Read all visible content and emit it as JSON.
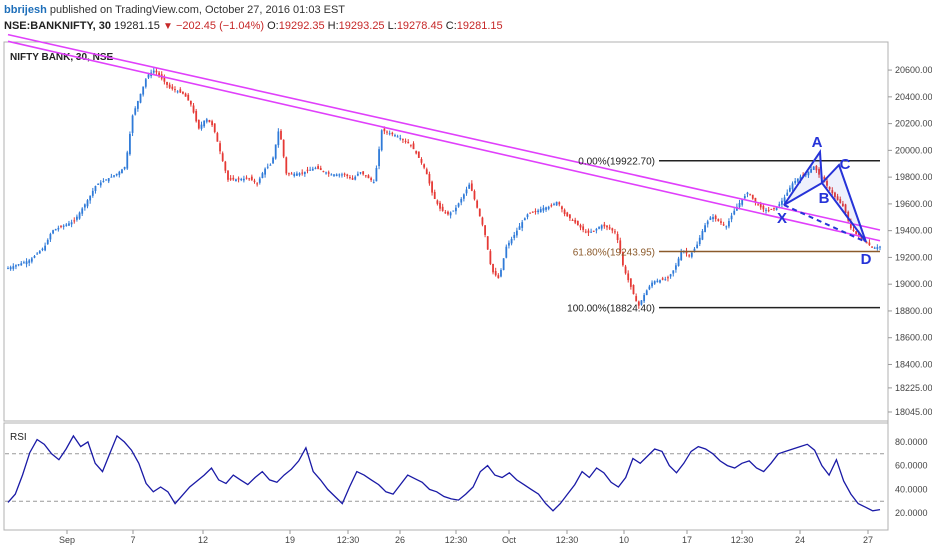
{
  "header": {
    "user": "bbrijesh",
    "published": "published on TradingView.com, October 27, 2016 01:03 EST",
    "symbol": "NSE:BANKNIFTY, 30",
    "last": "19281.15",
    "change": "−202.45 (−1.04%)",
    "o_label": "O:",
    "o": "19292.35",
    "h_label": "H:",
    "h": "19293.25",
    "l_label": "L:",
    "l": "19278.45",
    "c_label": "C:",
    "c": "19281.15"
  },
  "chart_data": {
    "type": "candlestick",
    "title": "NIFTY BANK, 30, NSE",
    "x_ticks": [
      "Sep",
      "7",
      "12",
      "19",
      "12:30",
      "26",
      "12:30",
      "Oct",
      "12:30",
      "10",
      "17",
      "12:30",
      "24",
      "27"
    ],
    "y_ticks": [
      "20600.00",
      "20400.00",
      "20200.00",
      "20000.00",
      "19800.00",
      "19600.00",
      "19400.00",
      "19200.00",
      "19000.00",
      "18800.00",
      "18600.00",
      "18400.00",
      "18225.00",
      "18045.00"
    ],
    "price_path": [
      [
        0,
        19120
      ],
      [
        3,
        19180
      ],
      [
        5,
        19280
      ],
      [
        6,
        19400
      ],
      [
        9,
        19470
      ],
      [
        11,
        19640
      ],
      [
        12,
        19740
      ],
      [
        14,
        19800
      ],
      [
        15,
        19830
      ],
      [
        16,
        19880
      ],
      [
        17,
        20260
      ],
      [
        19,
        20560
      ],
      [
        20,
        20600
      ],
      [
        22,
        20470
      ],
      [
        24,
        20420
      ],
      [
        25,
        20340
      ],
      [
        26,
        20160
      ],
      [
        27,
        20240
      ],
      [
        28,
        20180
      ],
      [
        30,
        19780
      ],
      [
        33,
        19790
      ],
      [
        34,
        19750
      ],
      [
        35,
        19860
      ],
      [
        36,
        19900
      ],
      [
        37,
        20170
      ],
      [
        38,
        19820
      ],
      [
        40,
        19830
      ],
      [
        42,
        19870
      ],
      [
        44,
        19820
      ],
      [
        46,
        19820
      ],
      [
        47,
        19780
      ],
      [
        48,
        19840
      ],
      [
        50,
        19760
      ],
      [
        51,
        20150
      ],
      [
        53,
        20110
      ],
      [
        55,
        20040
      ],
      [
        56,
        19950
      ],
      [
        57,
        19850
      ],
      [
        58,
        19660
      ],
      [
        59,
        19560
      ],
      [
        60,
        19520
      ],
      [
        61,
        19560
      ],
      [
        62,
        19650
      ],
      [
        63,
        19750
      ],
      [
        65,
        19400
      ],
      [
        66,
        19100
      ],
      [
        67,
        19040
      ],
      [
        68,
        19280
      ],
      [
        69,
        19360
      ],
      [
        70,
        19450
      ],
      [
        71,
        19530
      ],
      [
        72,
        19540
      ],
      [
        73,
        19570
      ],
      [
        74,
        19580
      ],
      [
        75,
        19620
      ],
      [
        76,
        19520
      ],
      [
        77,
        19480
      ],
      [
        78,
        19430
      ],
      [
        79,
        19380
      ],
      [
        80,
        19400
      ],
      [
        81,
        19440
      ],
      [
        82,
        19420
      ],
      [
        83,
        19380
      ],
      [
        84,
        19120
      ],
      [
        85,
        18980
      ],
      [
        86,
        18830
      ],
      [
        87,
        18940
      ],
      [
        88,
        19020
      ],
      [
        90,
        19040
      ],
      [
        91,
        19120
      ],
      [
        92,
        19260
      ],
      [
        93,
        19210
      ],
      [
        94,
        19290
      ],
      [
        95,
        19430
      ],
      [
        96,
        19510
      ],
      [
        97,
        19470
      ],
      [
        98,
        19430
      ],
      [
        99,
        19540
      ],
      [
        100,
        19620
      ],
      [
        101,
        19690
      ],
      [
        102,
        19610
      ],
      [
        103,
        19560
      ],
      [
        104,
        19550
      ],
      [
        105,
        19580
      ],
      [
        106,
        19650
      ],
      [
        107,
        19750
      ],
      [
        108,
        19800
      ],
      [
        109,
        19830
      ],
      [
        110,
        19880
      ],
      [
        111,
        19790
      ],
      [
        112,
        19720
      ],
      [
        113,
        19640
      ],
      [
        114,
        19580
      ],
      [
        115,
        19420
      ],
      [
        116,
        19360
      ],
      [
        117,
        19320
      ],
      [
        118,
        19270
      ],
      [
        119,
        19281
      ]
    ],
    "trendline_upper": [
      [
        0,
        20790
      ],
      [
        119,
        19330
      ]
    ],
    "trendline_lower": [
      [
        0,
        20740
      ],
      [
        119,
        19250
      ]
    ],
    "fibonacci": [
      {
        "label": "0.00%(19922.70)",
        "value": 19922.7
      },
      {
        "label": "61.80%(19243.95)",
        "value": 19243.95
      },
      {
        "label": "100.00%(18824.40)",
        "value": 18824.4
      }
    ],
    "pattern": {
      "points": [
        {
          "label": "X",
          "x": 106,
          "value": 19530
        },
        {
          "label": "A",
          "x": 112,
          "value": 19920
        },
        {
          "label": "B",
          "x": 111,
          "value": 19650
        },
        {
          "label": "C",
          "x": 113,
          "value": 19850
        },
        {
          "label": "D",
          "x": 118,
          "value": 19250
        }
      ]
    },
    "y_range": [
      18000,
      20750
    ],
    "rsi": {
      "label": "RSI",
      "y_ticks": [
        "80.0000",
        "60.0000",
        "40.0000",
        "20.0000"
      ],
      "levels": [
        70,
        30
      ],
      "values": [
        29,
        36,
        52,
        71,
        82,
        78,
        70,
        65,
        74,
        85,
        76,
        80,
        62,
        55,
        70,
        85,
        80,
        73,
        62,
        45,
        38,
        42,
        38,
        28,
        35,
        42,
        47,
        52,
        58,
        48,
        45,
        52,
        48,
        44,
        50,
        55,
        48,
        46,
        52,
        57,
        64,
        75,
        55,
        48,
        40,
        34,
        28,
        42,
        55,
        52,
        48,
        44,
        38,
        36,
        44,
        52,
        49,
        46,
        40,
        38,
        34,
        32,
        31,
        36,
        42,
        55,
        60,
        52,
        50,
        54,
        48,
        44,
        40,
        36,
        28,
        22,
        28,
        36,
        44,
        55,
        50,
        58,
        54,
        46,
        42,
        50,
        66,
        62,
        68,
        74,
        72,
        60,
        54,
        62,
        72,
        76,
        74,
        70,
        64,
        60,
        58,
        62,
        64,
        58,
        55,
        62,
        70,
        72,
        74,
        76,
        78,
        73,
        60,
        52,
        65,
        47,
        36,
        28,
        25,
        22,
        23
      ]
    }
  }
}
